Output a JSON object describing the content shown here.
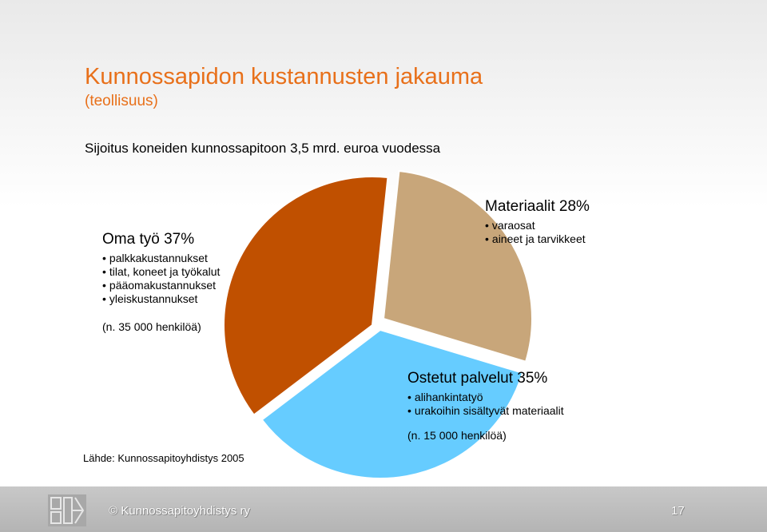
{
  "slide": {
    "title": "Kunnossapidon kustannusten jakauma",
    "subtitle": "(teollisuus)",
    "headline": "Sijoitus koneiden kunnossapitoon 3,5 mrd. euroa vuodessa",
    "source": "Lähde: Kunnossapitoyhdistys 2005"
  },
  "legend": {
    "own_work": {
      "title": "Oma työ 37%",
      "items": [
        "palkkakustannukset",
        "tilat, koneet ja työkalut",
        "pääomakustannukset",
        "yleiskustannukset"
      ],
      "note": "(n. 35 000 henkilöä)"
    },
    "materials": {
      "title": "Materiaalit 28%",
      "items": [
        "varaosat",
        "aineet ja tarvikkeet"
      ]
    },
    "services": {
      "title": "Ostetut palvelut 35%",
      "items": [
        "alihankintatyö",
        "urakoihin sisältyvät materiaalit"
      ],
      "note": "(n. 15 000 henkilöä)"
    }
  },
  "chart_data": {
    "type": "pie",
    "slices": [
      {
        "label": "Materiaalit",
        "value": 28,
        "color": "#c8a67a"
      },
      {
        "label": "Ostetut palvelut",
        "value": 35,
        "color": "#66ccff"
      },
      {
        "label": "Oma työ",
        "value": 37,
        "color": "#c05000"
      }
    ]
  },
  "footer": {
    "copyright": "© Kunnossapitoyhdistys ry",
    "page_number": "17"
  },
  "colors": {
    "title": "#e8701a",
    "footer_bg": "#bdbdbd"
  }
}
